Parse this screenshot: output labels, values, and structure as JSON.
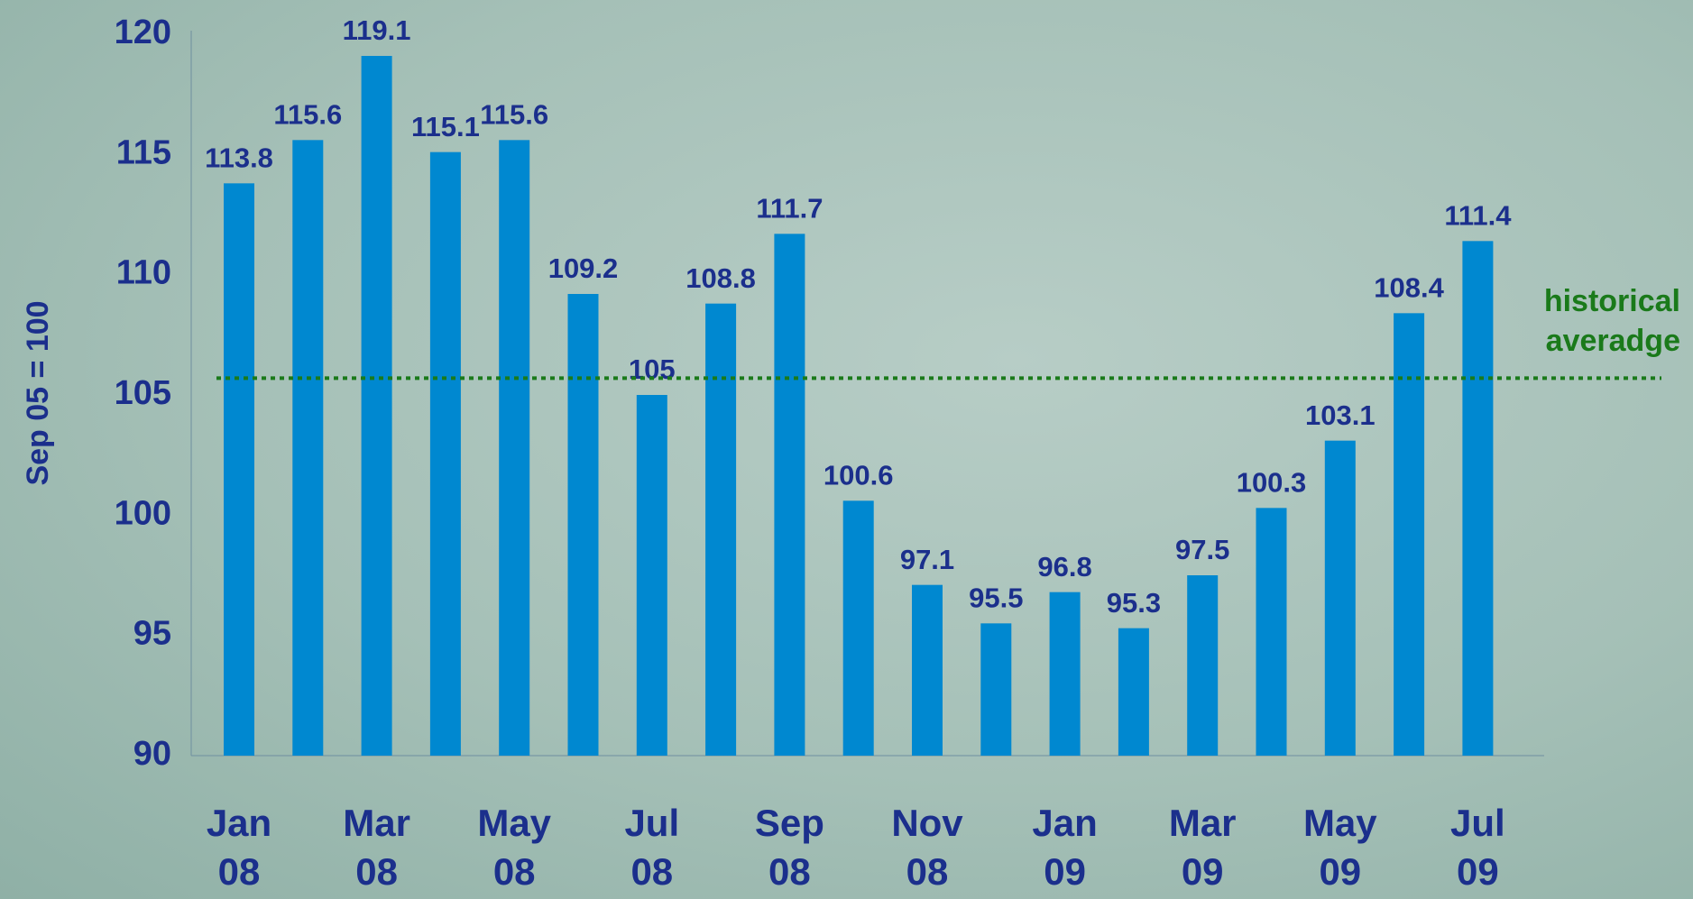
{
  "chart_data": {
    "type": "bar",
    "y_axis_label": "Sep 05 = 100",
    "categories": [
      "Jan 08",
      null,
      "Mar 08",
      null,
      "May 08",
      null,
      "Jul 08",
      null,
      "Sep 08",
      null,
      "Nov 08",
      null,
      "Jan 09",
      null,
      "Mar 09",
      null,
      "May 09",
      null,
      "Jul 09"
    ],
    "values": [
      113.8,
      115.6,
      119.1,
      115.1,
      115.6,
      109.2,
      105,
      108.8,
      111.7,
      100.6,
      97.1,
      95.5,
      96.8,
      95.3,
      97.5,
      100.3,
      103.1,
      108.4,
      111.4
    ],
    "color": "#0088d0",
    "ylim": [
      90,
      120
    ],
    "yticks": [
      90,
      95,
      100,
      105,
      110,
      115,
      120
    ],
    "grid": false,
    "reference_line": {
      "value": 105.7,
      "label": "historical averadge",
      "color": "#1a7a1a"
    }
  }
}
